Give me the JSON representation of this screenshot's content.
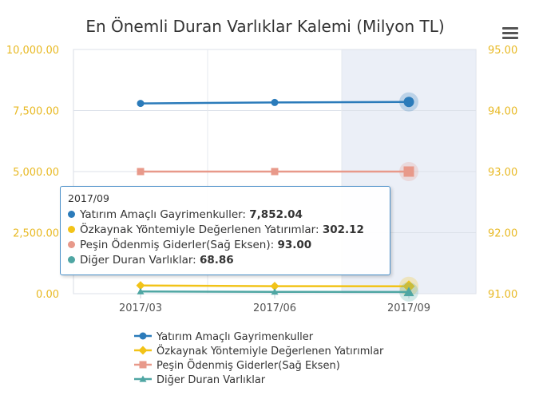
{
  "chart_data": {
    "type": "line",
    "title": "En Önemli Duran Varlıklar Kalemi (Milyon TL)",
    "categories": [
      "2017/03",
      "2017/06",
      "2017/09"
    ],
    "highlighted_category": "2017/09",
    "y_left": {
      "min": 0,
      "max": 10000,
      "ticks": [
        "0.00",
        "2,500.00",
        "5,000.00",
        "7,500.00",
        "10,000.00"
      ]
    },
    "y_right": {
      "min": 91,
      "max": 95,
      "ticks": [
        "91.00",
        "92.00",
        "93.00",
        "94.00",
        "95.00"
      ]
    },
    "series": [
      {
        "name": "Yatırım Amaçlı Gayrimenkuller",
        "axis": "left",
        "marker": "circle",
        "color": "#2b7bba",
        "values": [
          7790,
          7830,
          7852.04
        ]
      },
      {
        "name": "Özkaynak Yöntemiyle Değerlenen Yatırımlar",
        "axis": "left",
        "marker": "diamond",
        "color": "#f2c318",
        "values": [
          335,
          305,
          302.12
        ]
      },
      {
        "name": "Peşin Ödenmiş Giderler(Sağ Eksen)",
        "axis": "right",
        "marker": "square",
        "color": "#e8998a",
        "values": [
          93.0,
          93.0,
          93.0
        ]
      },
      {
        "name": "Diğer Duran Varlıklar",
        "axis": "left",
        "marker": "triangle",
        "color": "#4fa6a3",
        "values": [
          90,
          75,
          68.86
        ]
      }
    ],
    "legend_position": "bottom",
    "grid": true
  },
  "tooltip": {
    "header": "2017/09",
    "rows": [
      {
        "label": "Yatırım Amaçlı Gayrimenkuller: ",
        "value": "7,852.04",
        "color": "#2b7bba"
      },
      {
        "label": "Özkaynak Yöntemiyle Değerlenen Yatırımlar: ",
        "value": "302.12",
        "color": "#f2c318"
      },
      {
        "label": "Peşin Ödenmiş Giderler(Sağ Eksen): ",
        "value": "93.00",
        "color": "#e8998a"
      },
      {
        "label": "Diğer Duran Varlıklar: ",
        "value": "68.86",
        "color": "#4fa6a3"
      }
    ]
  },
  "menu_icon": "hamburger-icon"
}
